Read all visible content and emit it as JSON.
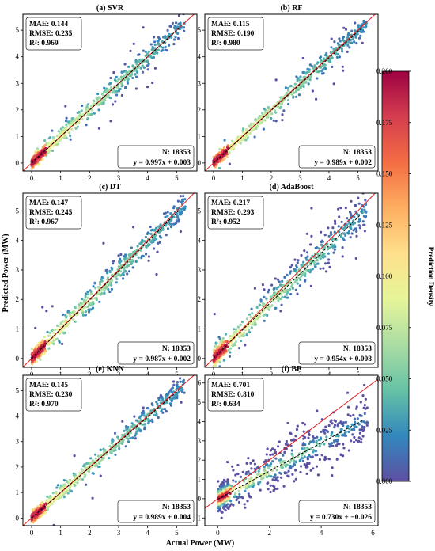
{
  "chart_data": {
    "type": "scatter",
    "xlabel": "Actual Power (MW)",
    "ylabel": "Predicted Power (MW)",
    "colorbar": {
      "label": "Prediction Density",
      "range": [
        0.0,
        0.2
      ],
      "ticks": [
        "0.000",
        "0.025",
        "0.050",
        "0.075",
        "0.100",
        "0.125",
        "0.150",
        "0.175",
        "0.200"
      ],
      "colormap": [
        "#5e4fa2",
        "#3288bd",
        "#66c2a5",
        "#abdda4",
        "#e6f598",
        "#fee08b",
        "#fdae61",
        "#f46d43",
        "#d53e4f",
        "#9e0142"
      ]
    },
    "reference_line_color": "#e41a1c",
    "fit_line_color": "#000000",
    "panels": [
      {
        "title": "(a) SVR",
        "mae": "MAE: 0.144",
        "rmse": "RMSE: 0.235",
        "r2": "R²: 0.969",
        "n": "N: 18353",
        "equation": "y = 0.997x + 0.003",
        "slope": 0.997,
        "intercept": 0.003,
        "xlim": [
          -0.3,
          5.7
        ],
        "ylim": [
          -0.3,
          5.6
        ],
        "xticks": [
          0,
          1,
          2,
          3,
          4,
          5
        ],
        "yticks": [
          0,
          1,
          2,
          3,
          4,
          5
        ],
        "spread": 0.2
      },
      {
        "title": "(b) RF",
        "mae": "MAE: 0.115",
        "rmse": "RMSE: 0.190",
        "r2": "R²: 0.980",
        "n": "N: 18353",
        "equation": "y = 0.989x + 0.002",
        "slope": 0.989,
        "intercept": 0.002,
        "xlim": [
          -0.3,
          5.7
        ],
        "ylim": [
          -0.3,
          5.6
        ],
        "xticks": [
          0,
          1,
          2,
          3,
          4,
          5
        ],
        "yticks": [
          0,
          1,
          2,
          3,
          4,
          5
        ],
        "spread": 0.17
      },
      {
        "title": "(c) DT",
        "mae": "MAE: 0.147",
        "rmse": "RMSE: 0.245",
        "r2": "R²: 0.967",
        "n": "N: 18353",
        "equation": "y = 0.987x + 0.002",
        "slope": 0.987,
        "intercept": 0.002,
        "xlim": [
          -0.3,
          5.7
        ],
        "ylim": [
          -0.3,
          5.6
        ],
        "xticks": [
          0,
          1,
          2,
          3,
          4,
          5
        ],
        "yticks": [
          0,
          1,
          2,
          3,
          4,
          5
        ],
        "spread": 0.22
      },
      {
        "title": "(d) AdaBoost",
        "mae": "MAE: 0.217",
        "rmse": "RMSE: 0.293",
        "r2": "R²: 0.952",
        "n": "N: 18353",
        "equation": "y = 0.954x + 0.008",
        "slope": 0.954,
        "intercept": 0.008,
        "xlim": [
          -0.3,
          5.7
        ],
        "ylim": [
          -0.3,
          5.6
        ],
        "xticks": [
          0,
          1,
          2,
          3,
          4,
          5
        ],
        "yticks": [
          0,
          1,
          2,
          3,
          4,
          5
        ],
        "spread": 0.28
      },
      {
        "title": "(e) KNN",
        "mae": "MAE: 0.145",
        "rmse": "RMSE: 0.230",
        "r2": "R²: 0.970",
        "n": "N: 18353",
        "equation": "y = 0.989x + 0.004",
        "slope": 0.989,
        "intercept": 0.004,
        "xlim": [
          -0.3,
          5.7
        ],
        "ylim": [
          -0.3,
          5.6
        ],
        "xticks": [
          0,
          1,
          2,
          3,
          4,
          5
        ],
        "yticks": [
          0,
          1,
          2,
          3,
          4,
          5
        ],
        "spread": 0.2
      },
      {
        "title": "(f) BP",
        "mae": "MAE: 0.701",
        "rmse": "RMSE: 0.810",
        "r2": "R²: 0.634",
        "n": "N: 18353",
        "equation": "y = 0.730x + −0.026",
        "slope": 0.73,
        "intercept": -0.026,
        "xlim": [
          -0.5,
          6.2
        ],
        "ylim": [
          -1.4,
          6.4
        ],
        "xticks": [
          0,
          2,
          4,
          6
        ],
        "yticks": [
          -1,
          0,
          1,
          2,
          3,
          4,
          5,
          6
        ],
        "spread": 0.65
      }
    ]
  }
}
